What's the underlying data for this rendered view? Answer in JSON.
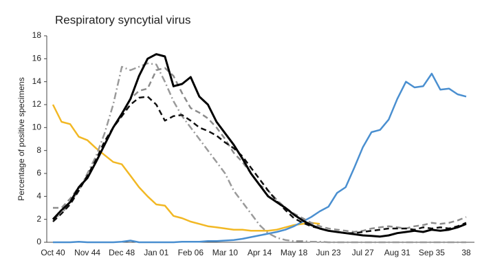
{
  "chart_data": {
    "type": "line",
    "title": "Respiratory syncytial virus",
    "y_label": "Percentage of positive specimens",
    "categories": [
      "Oct 40",
      null,
      null,
      null,
      "Nov 44",
      null,
      null,
      null,
      "Dec 48",
      null,
      null,
      null,
      "Jan 01",
      null,
      null,
      null,
      "Feb 06",
      null,
      null,
      null,
      "Mar 10",
      null,
      null,
      null,
      "Apr 14",
      null,
      null,
      null,
      "May 18",
      null,
      null,
      null,
      "Jun 23",
      null,
      null,
      null,
      "Jul 27",
      null,
      null,
      null,
      "Aug 31",
      null,
      null,
      null,
      "Sep 35",
      null,
      null,
      null,
      "38"
    ],
    "ylim": [
      0,
      18
    ],
    "yticks": [
      0,
      2,
      4,
      6,
      8,
      10,
      12,
      14,
      16,
      18
    ],
    "grid": false,
    "series": [
      {
        "color": "#f2b824",
        "dash": "solid",
        "values": [
          12,
          10.5,
          10.3,
          9.2,
          8.9,
          8.2,
          7.6,
          7,
          6.8,
          5.8,
          4.8,
          4,
          3.3,
          3.2,
          2.3,
          2.1,
          1.8,
          1.6,
          1.4,
          1.3,
          1.2,
          1.1,
          1.1,
          1.0,
          1.0,
          1.0,
          1.1,
          1.3,
          1.5,
          1.6,
          1.7,
          1.6,
          null,
          null,
          null,
          null,
          null,
          null,
          null,
          null,
          null,
          null,
          null,
          null,
          null,
          null,
          null,
          null,
          null
        ]
      },
      {
        "color": "#4a8fd0",
        "dash": "solid",
        "values": [
          0,
          0,
          0,
          0.05,
          0,
          0,
          0,
          0,
          0.05,
          0.15,
          0,
          0,
          0,
          0,
          0,
          0.05,
          0.05,
          0.05,
          0.1,
          0.1,
          0.15,
          0.2,
          0.3,
          0.45,
          0.6,
          0.75,
          0.9,
          1.1,
          1.4,
          1.8,
          2.2,
          2.7,
          3.1,
          4.3,
          4.8,
          6.5,
          8.3,
          9.6,
          9.8,
          10.7,
          12.5,
          14,
          13.5,
          13.6,
          14.7,
          13.3,
          13.4,
          12.9,
          12.7
        ]
      },
      {
        "color": "#9a9a9a",
        "dash": "dashdot",
        "values": [
          2,
          2.5,
          3.5,
          4.5,
          6,
          7.5,
          9.5,
          12,
          15.3,
          15,
          15.3,
          15.6,
          15.5,
          14,
          12.3,
          11,
          10,
          9,
          8,
          7,
          6,
          4.5,
          3.5,
          2.5,
          1.5,
          0.8,
          0.4,
          0.2,
          0.1,
          0.1,
          0.05,
          0.05,
          0,
          0,
          0,
          0,
          0,
          0,
          0,
          0,
          0,
          0,
          0,
          0,
          0,
          0,
          0,
          0,
          0
        ]
      },
      {
        "color": "#8c8c8c",
        "dash": "dashed",
        "values": [
          3,
          3,
          3.8,
          4.8,
          5.8,
          7,
          8.5,
          10,
          11,
          12.5,
          13.2,
          13.4,
          15,
          15.2,
          14.5,
          13,
          11.7,
          11.3,
          10.8,
          10,
          9,
          7.8,
          7,
          6,
          5,
          4.5,
          3.7,
          3,
          2.5,
          2.1,
          1.7,
          1.4,
          1.2,
          1.1,
          1.0,
          0.9,
          1.0,
          1.2,
          1.3,
          1.4,
          1.3,
          1.2,
          1.4,
          1.5,
          1.7,
          1.6,
          1.7,
          1.9,
          2.2
        ]
      },
      {
        "color": "#111111",
        "dash": "dashed",
        "values": [
          1.8,
          2.5,
          3.3,
          4.5,
          5.8,
          7.2,
          8.8,
          10,
          11,
          12,
          12.6,
          12.7,
          12,
          10.6,
          11,
          11.1,
          10.6,
          10,
          9.7,
          9.3,
          8.7,
          8.2,
          7.5,
          6.5,
          5.5,
          4.5,
          3.6,
          2.8,
          2.1,
          1.7,
          1.4,
          1.2,
          1.0,
          0.9,
          0.8,
          0.8,
          0.9,
          1.0,
          1.1,
          1.2,
          1.2,
          1.2,
          1.1,
          1.3,
          1.2,
          1.3,
          1.2,
          1.4,
          1.7
        ]
      },
      {
        "color": "#000000",
        "dash": "solid",
        "values": [
          2,
          2.8,
          3.5,
          4.8,
          5.6,
          7,
          8.5,
          10,
          11.2,
          12.5,
          14.5,
          16,
          16.4,
          16.2,
          13.6,
          13.8,
          14.4,
          12.7,
          12,
          10.5,
          9.5,
          8.5,
          7.3,
          6,
          5,
          4,
          3.5,
          3,
          2.4,
          1.9,
          1.5,
          1.2,
          1,
          0.9,
          0.8,
          0.7,
          0.6,
          0.55,
          0.5,
          0.6,
          0.8,
          0.9,
          1.0,
          0.9,
          1.1,
          1.0,
          1.1,
          1.3,
          1.6
        ]
      }
    ]
  }
}
